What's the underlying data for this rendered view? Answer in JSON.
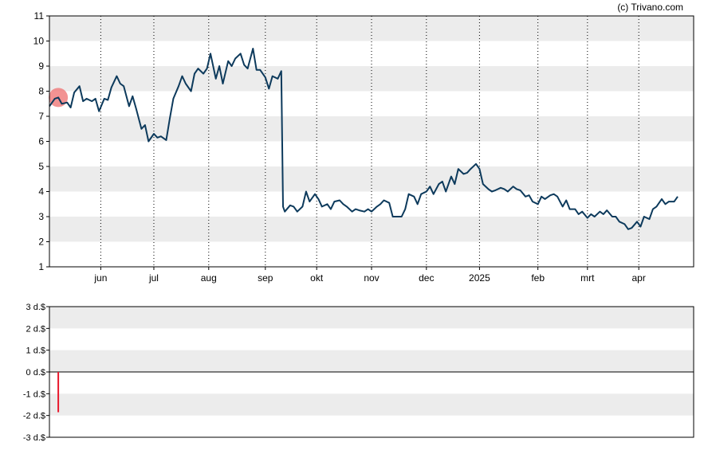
{
  "credit": "(c) Trivano.com",
  "chart_data": [
    {
      "type": "line",
      "title": "",
      "xlabel": "",
      "ylabel": "",
      "ylim": [
        1,
        11
      ],
      "yticks": [
        1,
        2,
        3,
        4,
        5,
        6,
        7,
        8,
        9,
        10,
        11
      ],
      "xlim": [
        "2024-05-03",
        "2025-05-02"
      ],
      "xticks": [
        {
          "label": "jun",
          "date": "2024-06-01"
        },
        {
          "label": "jul",
          "date": "2024-07-01"
        },
        {
          "label": "aug",
          "date": "2024-08-01"
        },
        {
          "label": "sep",
          "date": "2024-09-02"
        },
        {
          "label": "okt",
          "date": "2024-10-01"
        },
        {
          "label": "nov",
          "date": "2024-11-01"
        },
        {
          "label": "dec",
          "date": "2024-12-02"
        },
        {
          "label": "2025",
          "date": "2025-01-01"
        },
        {
          "label": "feb",
          "date": "2025-02-03"
        },
        {
          "label": "mrt",
          "date": "2025-03-03"
        },
        {
          "label": "apr",
          "date": "2025-04-01"
        }
      ],
      "grid": "horizontal bands, vertical dotted lines at month ticks",
      "line_color": "#0d3a5c",
      "marker": {
        "date": "2024-05-08",
        "value": 7.75,
        "color": "#f08080"
      },
      "series": [
        {
          "points": [
            [
              "2024-05-03",
              7.4
            ],
            [
              "2024-05-06",
              7.7
            ],
            [
              "2024-05-08",
              7.75
            ],
            [
              "2024-05-10",
              7.5
            ],
            [
              "2024-05-13",
              7.55
            ],
            [
              "2024-05-15",
              7.35
            ],
            [
              "2024-05-17",
              7.95
            ],
            [
              "2024-05-20",
              8.2
            ],
            [
              "2024-05-22",
              7.6
            ],
            [
              "2024-05-24",
              7.7
            ],
            [
              "2024-05-27",
              7.6
            ],
            [
              "2024-05-29",
              7.7
            ],
            [
              "2024-05-31",
              7.2
            ],
            [
              "2024-06-03",
              7.7
            ],
            [
              "2024-06-05",
              7.65
            ],
            [
              "2024-06-07",
              8.15
            ],
            [
              "2024-06-10",
              8.6
            ],
            [
              "2024-06-12",
              8.3
            ],
            [
              "2024-06-14",
              8.2
            ],
            [
              "2024-06-17",
              7.4
            ],
            [
              "2024-06-19",
              7.8
            ],
            [
              "2024-06-21",
              7.3
            ],
            [
              "2024-06-24",
              6.5
            ],
            [
              "2024-06-26",
              6.65
            ],
            [
              "2024-06-28",
              6.0
            ],
            [
              "2024-07-01",
              6.3
            ],
            [
              "2024-07-03",
              6.15
            ],
            [
              "2024-07-05",
              6.2
            ],
            [
              "2024-07-08",
              6.05
            ],
            [
              "2024-07-10",
              6.9
            ],
            [
              "2024-07-12",
              7.7
            ],
            [
              "2024-07-15",
              8.2
            ],
            [
              "2024-07-17",
              8.6
            ],
            [
              "2024-07-19",
              8.3
            ],
            [
              "2024-07-22",
              8.0
            ],
            [
              "2024-07-24",
              8.7
            ],
            [
              "2024-07-26",
              8.9
            ],
            [
              "2024-07-29",
              8.7
            ],
            [
              "2024-07-31",
              8.9
            ],
            [
              "2024-08-02",
              9.5
            ],
            [
              "2024-08-05",
              8.5
            ],
            [
              "2024-08-07",
              9.0
            ],
            [
              "2024-08-09",
              8.3
            ],
            [
              "2024-08-12",
              9.2
            ],
            [
              "2024-08-14",
              9.0
            ],
            [
              "2024-08-16",
              9.3
            ],
            [
              "2024-08-19",
              9.5
            ],
            [
              "2024-08-21",
              9.05
            ],
            [
              "2024-08-23",
              8.9
            ],
            [
              "2024-08-26",
              9.7
            ],
            [
              "2024-08-28",
              8.85
            ],
            [
              "2024-08-30",
              8.85
            ],
            [
              "2024-09-02",
              8.55
            ],
            [
              "2024-09-04",
              8.1
            ],
            [
              "2024-09-06",
              8.6
            ],
            [
              "2024-09-09",
              8.5
            ],
            [
              "2024-09-11",
              8.8
            ],
            [
              "2024-09-12",
              3.4
            ],
            [
              "2024-09-13",
              3.2
            ],
            [
              "2024-09-16",
              3.45
            ],
            [
              "2024-09-18",
              3.4
            ],
            [
              "2024-09-20",
              3.2
            ],
            [
              "2024-09-23",
              3.4
            ],
            [
              "2024-09-25",
              4.0
            ],
            [
              "2024-09-27",
              3.6
            ],
            [
              "2024-09-30",
              3.9
            ],
            [
              "2024-10-02",
              3.7
            ],
            [
              "2024-10-04",
              3.4
            ],
            [
              "2024-10-07",
              3.5
            ],
            [
              "2024-10-09",
              3.3
            ],
            [
              "2024-10-11",
              3.6
            ],
            [
              "2024-10-14",
              3.65
            ],
            [
              "2024-10-16",
              3.5
            ],
            [
              "2024-10-18",
              3.4
            ],
            [
              "2024-10-21",
              3.2
            ],
            [
              "2024-10-23",
              3.3
            ],
            [
              "2024-10-25",
              3.25
            ],
            [
              "2024-10-28",
              3.2
            ],
            [
              "2024-10-30",
              3.3
            ],
            [
              "2024-11-01",
              3.2
            ],
            [
              "2024-11-04",
              3.4
            ],
            [
              "2024-11-06",
              3.5
            ],
            [
              "2024-11-08",
              3.65
            ],
            [
              "2024-11-11",
              3.55
            ],
            [
              "2024-11-13",
              3.0
            ],
            [
              "2024-11-15",
              3.0
            ],
            [
              "2024-11-18",
              3.0
            ],
            [
              "2024-11-20",
              3.3
            ],
            [
              "2024-11-22",
              3.9
            ],
            [
              "2024-11-25",
              3.8
            ],
            [
              "2024-11-27",
              3.5
            ],
            [
              "2024-11-29",
              3.9
            ],
            [
              "2024-12-02",
              4.0
            ],
            [
              "2024-12-04",
              4.2
            ],
            [
              "2024-12-06",
              3.9
            ],
            [
              "2024-12-09",
              4.3
            ],
            [
              "2024-12-11",
              4.4
            ],
            [
              "2024-12-13",
              4.0
            ],
            [
              "2024-12-16",
              4.6
            ],
            [
              "2024-12-18",
              4.3
            ],
            [
              "2024-12-20",
              4.9
            ],
            [
              "2024-12-23",
              4.7
            ],
            [
              "2024-12-25",
              4.75
            ],
            [
              "2024-12-27",
              4.9
            ],
            [
              "2024-12-30",
              5.1
            ],
            [
              "2025-01-01",
              4.9
            ],
            [
              "2025-01-03",
              4.3
            ],
            [
              "2025-01-06",
              4.1
            ],
            [
              "2025-01-08",
              4.0
            ],
            [
              "2025-01-10",
              4.05
            ],
            [
              "2025-01-13",
              4.15
            ],
            [
              "2025-01-15",
              4.1
            ],
            [
              "2025-01-17",
              4.0
            ],
            [
              "2025-01-20",
              4.2
            ],
            [
              "2025-01-22",
              4.1
            ],
            [
              "2025-01-24",
              4.05
            ],
            [
              "2025-01-27",
              3.8
            ],
            [
              "2025-01-29",
              3.85
            ],
            [
              "2025-01-31",
              3.6
            ],
            [
              "2025-02-03",
              3.5
            ],
            [
              "2025-02-05",
              3.8
            ],
            [
              "2025-02-07",
              3.7
            ],
            [
              "2025-02-10",
              3.85
            ],
            [
              "2025-02-12",
              3.9
            ],
            [
              "2025-02-14",
              3.8
            ],
            [
              "2025-02-17",
              3.4
            ],
            [
              "2025-02-19",
              3.65
            ],
            [
              "2025-02-21",
              3.3
            ],
            [
              "2025-02-24",
              3.3
            ],
            [
              "2025-02-26",
              3.1
            ],
            [
              "2025-02-28",
              3.2
            ],
            [
              "2025-03-03",
              2.95
            ],
            [
              "2025-03-05",
              3.1
            ],
            [
              "2025-03-07",
              3.0
            ],
            [
              "2025-03-10",
              3.2
            ],
            [
              "2025-03-12",
              3.1
            ],
            [
              "2025-03-14",
              3.25
            ],
            [
              "2025-03-17",
              3.0
            ],
            [
              "2025-03-19",
              3.0
            ],
            [
              "2025-03-21",
              2.8
            ],
            [
              "2025-03-24",
              2.7
            ],
            [
              "2025-03-26",
              2.5
            ],
            [
              "2025-03-28",
              2.55
            ],
            [
              "2025-03-31",
              2.8
            ],
            [
              "2025-04-02",
              2.6
            ],
            [
              "2025-04-04",
              3.0
            ],
            [
              "2025-04-07",
              2.9
            ],
            [
              "2025-04-09",
              3.3
            ],
            [
              "2025-04-11",
              3.4
            ],
            [
              "2025-04-14",
              3.7
            ],
            [
              "2025-04-16",
              3.5
            ],
            [
              "2025-04-18",
              3.6
            ],
            [
              "2025-04-21",
              3.6
            ],
            [
              "2025-04-23",
              3.8
            ]
          ]
        }
      ]
    },
    {
      "type": "bar",
      "title": "",
      "xlabel": "",
      "ylabel": "",
      "ylim": [
        -3,
        3
      ],
      "yticks": [
        {
          "value": 3,
          "label": "3 d.$"
        },
        {
          "value": 2,
          "label": "2 d.$"
        },
        {
          "value": 1,
          "label": "1 d.$"
        },
        {
          "value": 0,
          "label": "0 d.$"
        },
        {
          "value": -1,
          "label": "-1 d.$"
        },
        {
          "value": -2,
          "label": "-2 d.$"
        },
        {
          "value": -3,
          "label": "-3 d.$"
        }
      ],
      "grid": "horizontal bands",
      "bar_color": "#e8182c",
      "bars": [
        {
          "date": "2024-05-08",
          "value": -1.85
        }
      ]
    }
  ]
}
